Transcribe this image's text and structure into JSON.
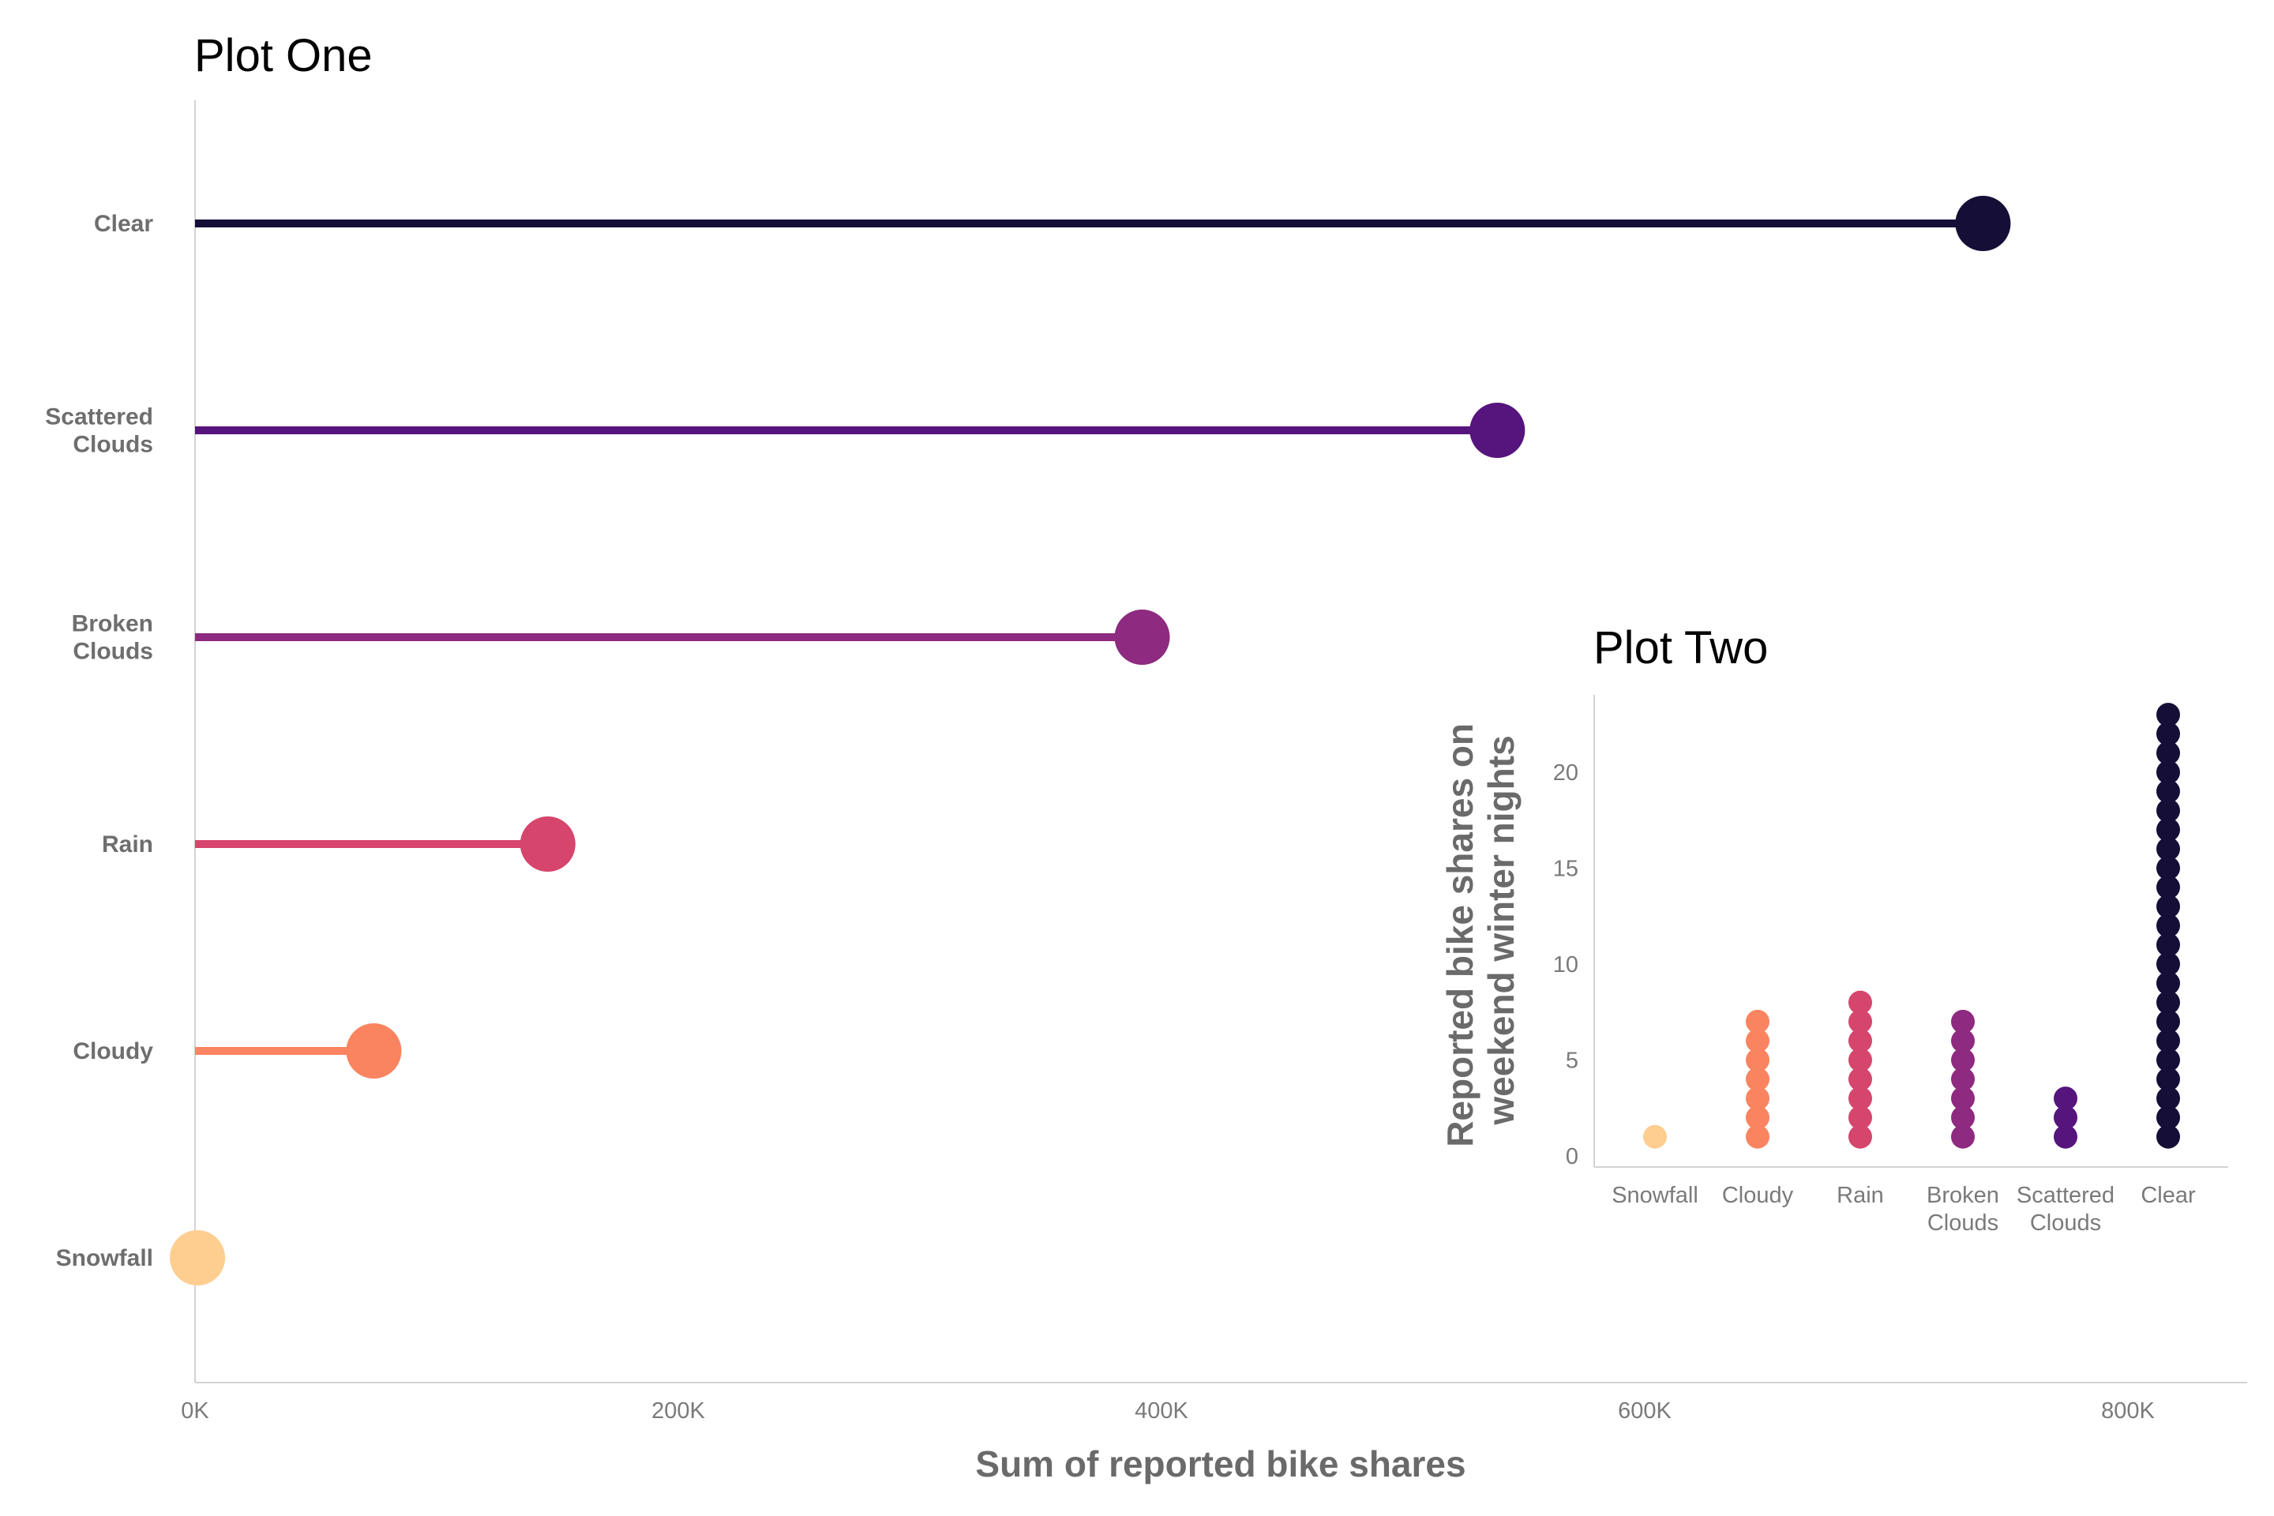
{
  "chart_data": [
    {
      "type": "lollipop",
      "title": "Plot One",
      "xlabel": "Sum of reported bike shares",
      "ylabel": "",
      "xlim": [
        0,
        850000
      ],
      "x_ticks": [
        {
          "value": 0,
          "label": "0K"
        },
        {
          "value": 200000,
          "label": "200K"
        },
        {
          "value": 400000,
          "label": "400K"
        },
        {
          "value": 600000,
          "label": "600K"
        },
        {
          "value": 800000,
          "label": "800K"
        }
      ],
      "categories": [
        {
          "label_lines": [
            "Clear"
          ],
          "value": 740000,
          "color": "#150E37"
        },
        {
          "label_lines": [
            "Scattered",
            "Clouds"
          ],
          "value": 539000,
          "color": "#56147D"
        },
        {
          "label_lines": [
            "Broken",
            "Clouds"
          ],
          "value": 392000,
          "color": "#8E2A7F"
        },
        {
          "label_lines": [
            "Rain"
          ],
          "value": 146000,
          "color": "#D6456C"
        },
        {
          "label_lines": [
            "Cloudy"
          ],
          "value": 74000,
          "color": "#FA8460"
        },
        {
          "label_lines": [
            "Snowfall"
          ],
          "value": 1000,
          "color": "#FECE91"
        }
      ],
      "grid": false
    },
    {
      "type": "dot",
      "title": "Plot Two",
      "xlabel": "",
      "ylabel_lines": [
        "Reported bike shares on",
        "weekend winter nights"
      ],
      "ylim": [
        0,
        24
      ],
      "y_ticks": [
        0,
        5,
        10,
        15,
        20
      ],
      "categories": [
        {
          "label_lines": [
            "Snowfall"
          ],
          "count": 1,
          "color": "#FECE91"
        },
        {
          "label_lines": [
            "Cloudy"
          ],
          "count": 7,
          "color": "#FA8460"
        },
        {
          "label_lines": [
            "Rain"
          ],
          "count": 8,
          "color": "#D6456C"
        },
        {
          "label_lines": [
            "Broken",
            "Clouds"
          ],
          "count": 7,
          "color": "#8E2A7F"
        },
        {
          "label_lines": [
            "Scattered",
            "Clouds"
          ],
          "count": 3,
          "color": "#56147D"
        },
        {
          "label_lines": [
            "Clear"
          ],
          "count": 23,
          "color": "#150E37"
        }
      ],
      "grid": false
    }
  ]
}
